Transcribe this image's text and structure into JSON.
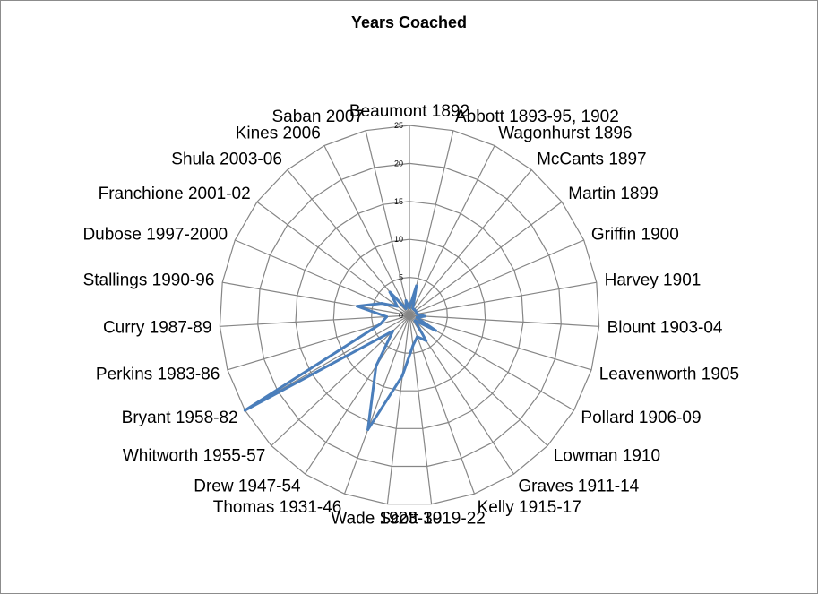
{
  "chart_data": {
    "type": "radar",
    "title": "Years Coached",
    "categories": [
      "Beaumont 1892",
      "Abbott 1893-95, 1902",
      "Wagonhurst 1896",
      "McCants 1897",
      "Martin 1899",
      "Griffin 1900",
      "Harvey 1901",
      "Blount 1903-04",
      "Leavenworth 1905",
      "Pollard 1906-09",
      "Lowman 1910",
      "Graves 1911-14",
      "Kelly 1915-17",
      "Scott 1919-22",
      "Wade 1923-30",
      "Thomas 1931-46",
      "Drew 1947-54",
      "Whitworth 1955-57",
      "Bryant 1958-82",
      "Perkins 1983-86",
      "Curry 1987-89",
      "Stallings 1990-96",
      "Dubose 1997-2000",
      "Franchione 2001-02",
      "Shula 2003-06",
      "Kines 2006",
      "Saban 2007"
    ],
    "series": [
      {
        "values": [
          1,
          4,
          1,
          1,
          1,
          1,
          1,
          2,
          1,
          4,
          1,
          4,
          3,
          4,
          8,
          16,
          8,
          3,
          25,
          4,
          3,
          7,
          4,
          2,
          4,
          1,
          2
        ]
      }
    ],
    "rlim": [
      0,
      25
    ],
    "ticks": [
      "0",
      "5",
      "10",
      "15",
      "20",
      "25"
    ],
    "grid": true,
    "legend": "none",
    "colors": {
      "series": "#4a7ebb",
      "grid": "#868686"
    }
  }
}
